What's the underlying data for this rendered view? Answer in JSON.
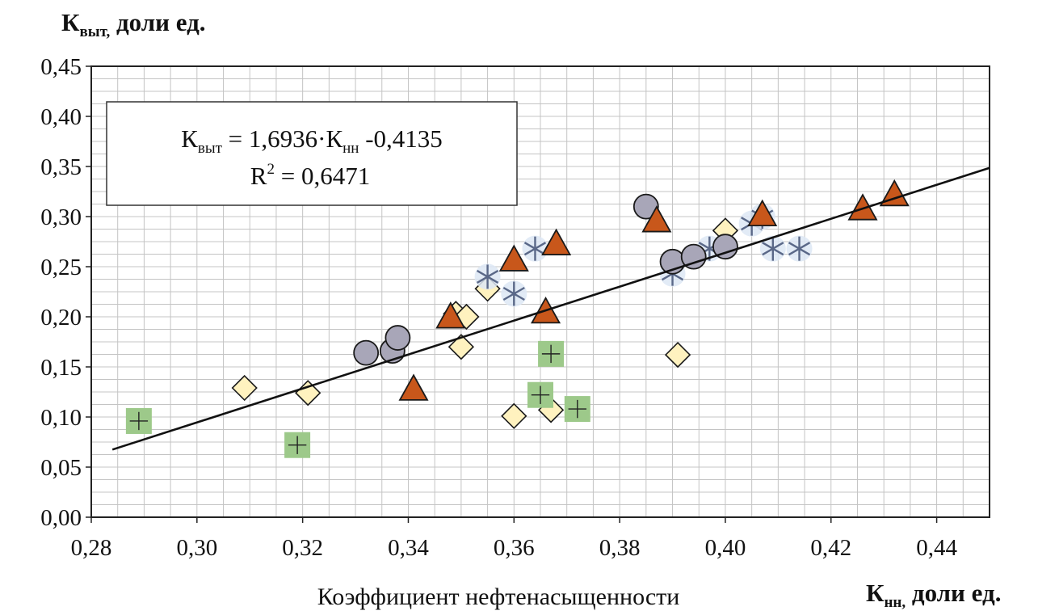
{
  "chart_data": {
    "type": "scatter",
    "title": "",
    "ylabel": {
      "main": "К",
      "sub": "выт,",
      "rest": " доли ед."
    },
    "xlabel_right": {
      "main": "К",
      "sub": "нн,",
      "rest": " доли ед."
    },
    "xlabel": "Коэффициент нефтенасыщенности",
    "xlim": [
      0.28,
      0.45
    ],
    "ylim": [
      0.0,
      0.45
    ],
    "x_ticks": [
      0.28,
      0.3,
      0.32,
      0.34,
      0.36,
      0.38,
      0.4,
      0.42,
      0.44
    ],
    "x_tick_labels": [
      "0,28",
      "0,30",
      "0,32",
      "0,34",
      "0,36",
      "0,38",
      "0,40",
      "0,42",
      "0,44"
    ],
    "y_ticks": [
      0.0,
      0.05,
      0.1,
      0.15,
      0.2,
      0.25,
      0.3,
      0.35,
      0.4,
      0.45
    ],
    "y_tick_labels": [
      "0,00",
      "0,05",
      "0,10",
      "0,15",
      "0,20",
      "0,25",
      "0,30",
      "0,35",
      "0,40",
      "0,45"
    ],
    "grid": true,
    "legend": "none",
    "annotation": {
      "line1_left": "К",
      "line1_sub1": "выт",
      "line1_mid": " = 1,6936·К",
      "line1_sub2": "нн",
      "line1_end": " -0,4135",
      "line2_left": "R",
      "line2_sup": "2",
      "line2_end": " = 0,6471",
      "placement": "top-left"
    },
    "trendline": {
      "slope": 1.6936,
      "intercept": -0.4135,
      "x_range": [
        0.284,
        0.45
      ],
      "color": "#111111"
    },
    "series": [
      {
        "marker": "circle",
        "color": "#a8a6b8",
        "points": [
          [
            0.332,
            0.164
          ],
          [
            0.337,
            0.166
          ],
          [
            0.338,
            0.179
          ],
          [
            0.385,
            0.31
          ],
          [
            0.39,
            0.255
          ],
          [
            0.394,
            0.26
          ],
          [
            0.4,
            0.27
          ]
        ]
      },
      {
        "marker": "triangle",
        "color": "#c8571b",
        "points": [
          [
            0.341,
            0.128
          ],
          [
            0.348,
            0.2
          ],
          [
            0.36,
            0.257
          ],
          [
            0.366,
            0.205
          ],
          [
            0.368,
            0.273
          ],
          [
            0.387,
            0.296
          ],
          [
            0.407,
            0.302
          ],
          [
            0.426,
            0.308
          ],
          [
            0.432,
            0.322
          ]
        ]
      },
      {
        "marker": "diamond",
        "color": "#fff2bf",
        "points": [
          [
            0.309,
            0.129
          ],
          [
            0.321,
            0.124
          ],
          [
            0.349,
            0.203
          ],
          [
            0.35,
            0.17
          ],
          [
            0.351,
            0.2
          ],
          [
            0.355,
            0.228
          ],
          [
            0.36,
            0.101
          ],
          [
            0.367,
            0.107
          ],
          [
            0.391,
            0.162
          ],
          [
            0.4,
            0.286
          ]
        ]
      },
      {
        "marker": "square",
        "color": "#9dc98a",
        "points": [
          [
            0.289,
            0.096
          ],
          [
            0.319,
            0.072
          ],
          [
            0.365,
            0.122
          ],
          [
            0.367,
            0.163
          ],
          [
            0.372,
            0.108
          ]
        ]
      },
      {
        "marker": "star",
        "color": "#5a6888",
        "points": [
          [
            0.355,
            0.24
          ],
          [
            0.36,
            0.223
          ],
          [
            0.364,
            0.268
          ],
          [
            0.39,
            0.243
          ],
          [
            0.397,
            0.268
          ],
          [
            0.405,
            0.293
          ],
          [
            0.407,
            0.3
          ],
          [
            0.409,
            0.268
          ],
          [
            0.414,
            0.268
          ]
        ]
      }
    ]
  }
}
